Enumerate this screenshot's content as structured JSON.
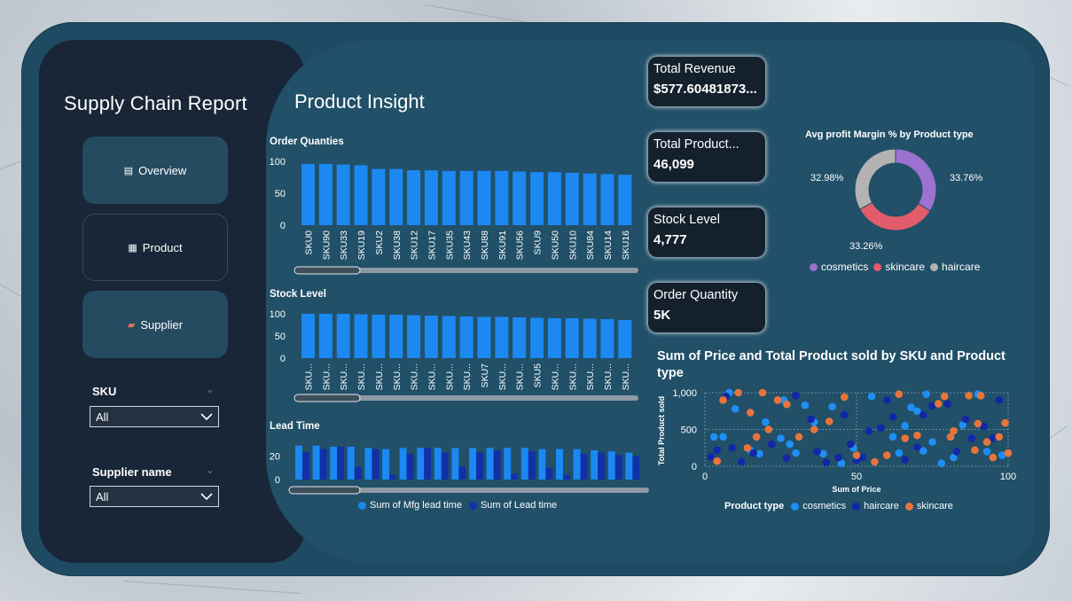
{
  "sidebar": {
    "title": "Supply Chain Report",
    "nav": [
      {
        "label": "Overview",
        "icon": "▤"
      },
      {
        "label": "Product",
        "icon": "▦"
      },
      {
        "label": "Supplier",
        "icon": "▰"
      }
    ],
    "slicers": [
      {
        "label": "SKU",
        "value": "All"
      },
      {
        "label": "Supplier name",
        "value": "All"
      }
    ]
  },
  "main": {
    "title": "Product Insight"
  },
  "kpis": [
    {
      "label": "Total Revenue",
      "value": "$577.60481873..."
    },
    {
      "label": "Total Product...",
      "value": "46,099"
    },
    {
      "label": "Stock Level",
      "value": "4,777"
    },
    {
      "label": "Order Quantity",
      "value": "5K"
    }
  ],
  "colors": {
    "bar": "#1c88f2",
    "mfg": "#1c88f2",
    "lead": "#1130a8",
    "cosmetics": "#9b72d0",
    "skincare": "#e25c6c",
    "haircare": "#b3b3b3",
    "scatter_cosmetics": "#1f8ef5",
    "scatter_haircare": "#1227a8",
    "scatter_skincare": "#e8743b"
  },
  "chart_data": [
    {
      "type": "bar",
      "title": "Order Quanties",
      "categories": [
        "SKU0",
        "SKU90",
        "SKU33",
        "SKU19",
        "SKU2",
        "SKU38",
        "SKU12",
        "SKU17",
        "SKU35",
        "SKU43",
        "SKU88",
        "SKU91",
        "SKU56",
        "SKU9",
        "SKU50",
        "SKU10",
        "SKU84",
        "SKU14",
        "SKU16"
      ],
      "values": [
        96,
        96,
        95,
        94,
        88,
        88,
        86,
        86,
        85,
        85,
        85,
        85,
        84,
        83,
        83,
        82,
        81,
        80,
        79
      ],
      "yticks": [
        "0",
        "50",
        "100"
      ],
      "ylim": [
        0,
        100
      ]
    },
    {
      "type": "bar",
      "title": "Stock Level",
      "categories": [
        "SKU...",
        "SKU...",
        "SKU...",
        "SKU...",
        "SKU...",
        "SKU...",
        "SKU...",
        "SKU...",
        "SKU...",
        "SKU...",
        "SKU7",
        "SKU...",
        "SKU...",
        "SKU5",
        "SKU...",
        "SKU...",
        "SKU...",
        "SKU...",
        "SKU..."
      ],
      "values": [
        100,
        100,
        100,
        99,
        98,
        98,
        97,
        96,
        95,
        94,
        93,
        93,
        92,
        91,
        90,
        90,
        89,
        88,
        86
      ],
      "yticks": [
        "0",
        "50",
        "100"
      ],
      "ylim": [
        0,
        100
      ]
    },
    {
      "type": "bar",
      "title": "Lead Time",
      "yticks": [
        "0",
        "20"
      ],
      "ylim": [
        0,
        34
      ],
      "series": [
        {
          "name": "Sum of Mfg lead time",
          "values": [
            29,
            29,
            28,
            28,
            27,
            26,
            27,
            27,
            27,
            27,
            27,
            27,
            27,
            27,
            26,
            26,
            26,
            25,
            24,
            23
          ]
        },
        {
          "name": "Sum of Lead time",
          "values": [
            23,
            26,
            28,
            11,
            26,
            4,
            22,
            27,
            23,
            11,
            23,
            25,
            5,
            24,
            10,
            4,
            22,
            23,
            21,
            20
          ]
        }
      ]
    },
    {
      "type": "pie",
      "title": "Avg profit Margin % by Product type",
      "categories": [
        "cosmetics",
        "skincare",
        "haircare"
      ],
      "values": [
        33.76,
        33.26,
        32.98
      ],
      "labels": [
        "33.76%",
        "33.26%",
        "32.98%"
      ]
    },
    {
      "type": "scatter",
      "title": "Sum of Price and Total Product sold by SKU and Product type",
      "xlabel": "Sum of Price",
      "ylabel": "Total Product sold",
      "xlim": [
        0,
        100
      ],
      "ylim": [
        0,
        1000
      ],
      "xticks": [
        "0",
        "50",
        "100"
      ],
      "yticks": [
        "0",
        "500",
        "1,000"
      ],
      "legend_title": "Product type",
      "series": [
        {
          "name": "cosmetics",
          "points": [
            [
              3,
              400
            ],
            [
              6,
              400
            ],
            [
              8,
              1000
            ],
            [
              10,
              780
            ],
            [
              15,
              220
            ],
            [
              18,
              170
            ],
            [
              20,
              600
            ],
            [
              25,
              380
            ],
            [
              26,
              900
            ],
            [
              28,
              300
            ],
            [
              30,
              180
            ],
            [
              33,
              830
            ],
            [
              36,
              600
            ],
            [
              39,
              170
            ],
            [
              42,
              810
            ],
            [
              45,
              40
            ],
            [
              49,
              250
            ],
            [
              55,
              950
            ],
            [
              62,
              400
            ],
            [
              64,
              180
            ],
            [
              66,
              550
            ],
            [
              68,
              800
            ],
            [
              70,
              750
            ],
            [
              72,
              210
            ],
            [
              73,
              980
            ],
            [
              75,
              330
            ],
            [
              78,
              40
            ],
            [
              82,
              120
            ],
            [
              85,
              560
            ],
            [
              90,
              980
            ],
            [
              93,
              200
            ],
            [
              98,
              150
            ]
          ]
        },
        {
          "name": "haircare",
          "points": [
            [
              2,
              130
            ],
            [
              4,
              220
            ],
            [
              7,
              950
            ],
            [
              9,
              250
            ],
            [
              12,
              60
            ],
            [
              16,
              180
            ],
            [
              22,
              300
            ],
            [
              27,
              110
            ],
            [
              30,
              960
            ],
            [
              35,
              640
            ],
            [
              37,
              200
            ],
            [
              40,
              50
            ],
            [
              44,
              120
            ],
            [
              46,
              700
            ],
            [
              48,
              300
            ],
            [
              50,
              80
            ],
            [
              52,
              120
            ],
            [
              54,
              480
            ],
            [
              58,
              520
            ],
            [
              60,
              900
            ],
            [
              62,
              670
            ],
            [
              66,
              90
            ],
            [
              70,
              260
            ],
            [
              72,
              700
            ],
            [
              75,
              820
            ],
            [
              80,
              850
            ],
            [
              83,
              200
            ],
            [
              86,
              640
            ],
            [
              88,
              380
            ],
            [
              92,
              540
            ],
            [
              95,
              380
            ],
            [
              97,
              900
            ]
          ]
        },
        {
          "name": "skincare",
          "points": [
            [
              4,
              70
            ],
            [
              6,
              900
            ],
            [
              11,
              1000
            ],
            [
              14,
              250
            ],
            [
              15,
              730
            ],
            [
              17,
              400
            ],
            [
              19,
              1000
            ],
            [
              21,
              500
            ],
            [
              24,
              900
            ],
            [
              27,
              840
            ],
            [
              31,
              400
            ],
            [
              36,
              500
            ],
            [
              41,
              610
            ],
            [
              46,
              940
            ],
            [
              50,
              150
            ],
            [
              56,
              60
            ],
            [
              60,
              150
            ],
            [
              64,
              980
            ],
            [
              66,
              380
            ],
            [
              70,
              420
            ],
            [
              77,
              850
            ],
            [
              79,
              950
            ],
            [
              81,
              400
            ],
            [
              82,
              480
            ],
            [
              87,
              960
            ],
            [
              89,
              220
            ],
            [
              90,
              580
            ],
            [
              91,
              960
            ],
            [
              93,
              330
            ],
            [
              95,
              120
            ],
            [
              97,
              400
            ],
            [
              99,
              590
            ],
            [
              100,
              180
            ]
          ]
        }
      ]
    }
  ]
}
